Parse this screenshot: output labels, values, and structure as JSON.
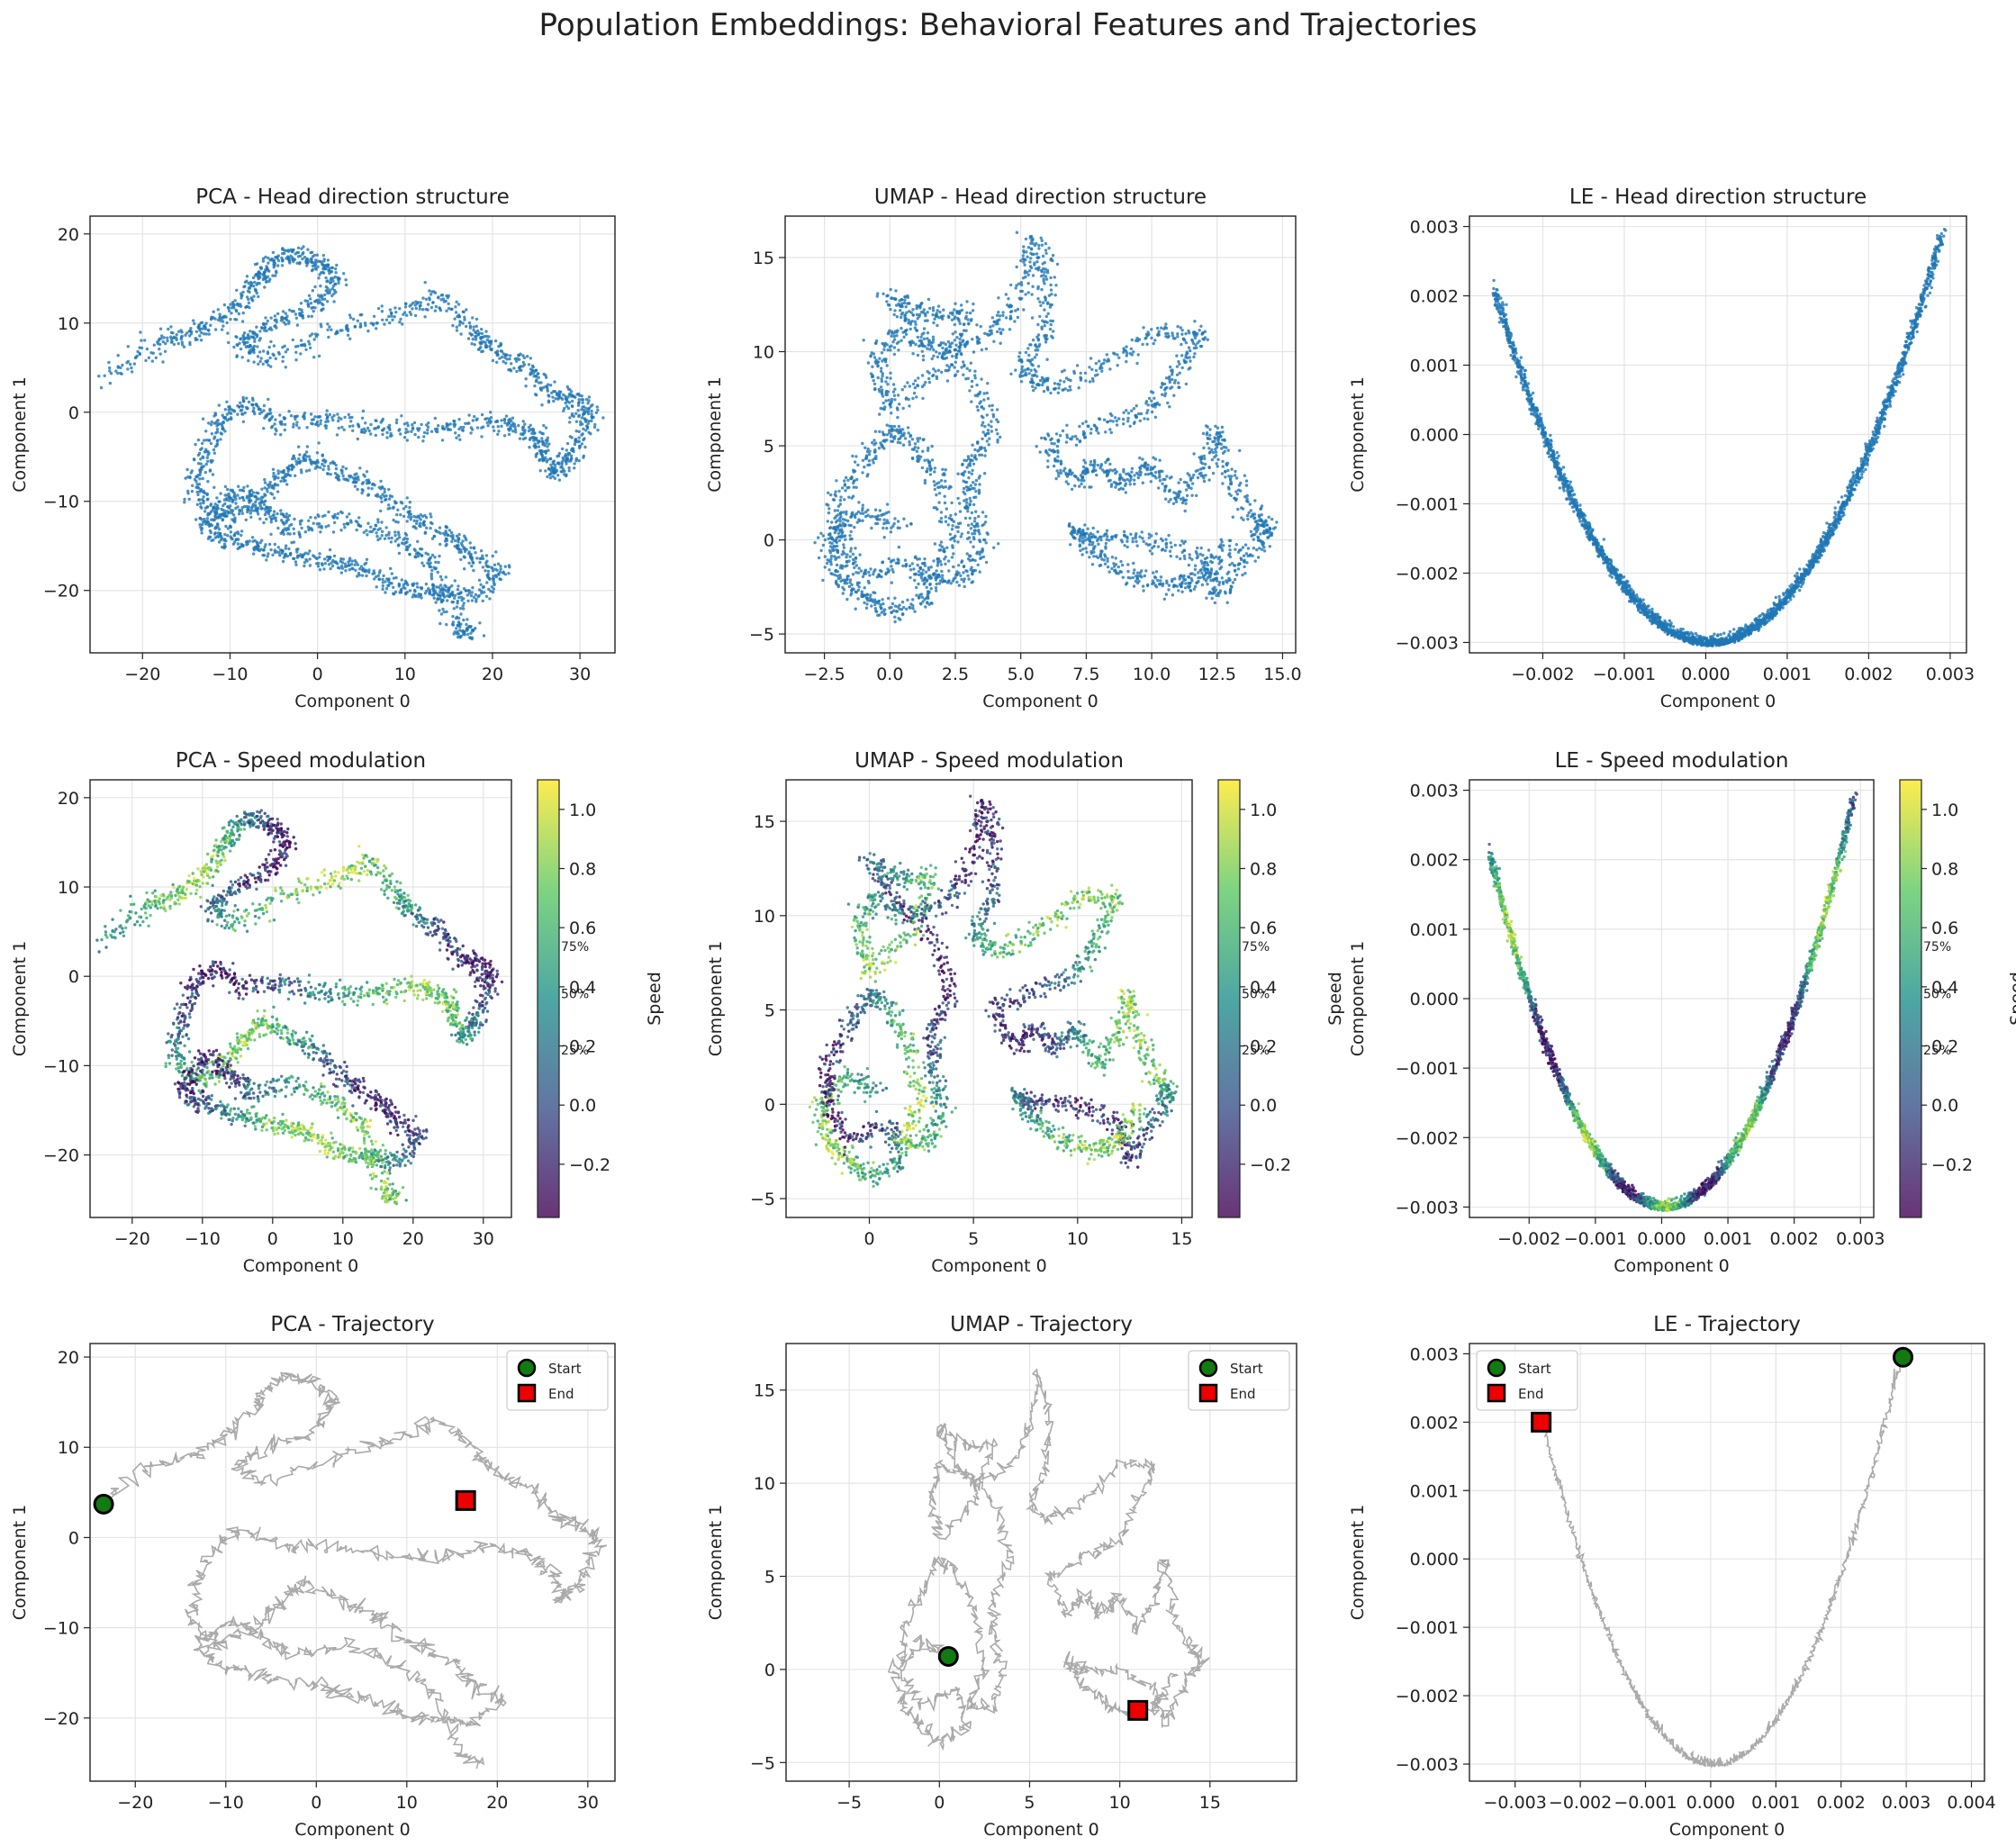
{
  "figure": {
    "title": "Population Embeddings: Behavioral Features and Trajectories"
  },
  "colors": {
    "point_blue": "#1f77b4",
    "trajectory_gray": "#aaaaaa",
    "start_marker": "#117a11",
    "end_marker": "#ee0000",
    "grid": "#e4e4e4",
    "viridis": [
      "#440154",
      "#3b528b",
      "#21918c",
      "#5ec962",
      "#fde725"
    ]
  },
  "chart_data": [
    {
      "id": "pca_head",
      "type": "scatter",
      "title": "PCA - Head direction structure",
      "xlabel": "Component 0",
      "ylabel": "Component 1",
      "xlim": [
        -26,
        34
      ],
      "ylim": [
        -27,
        22
      ],
      "xticks": [
        -20,
        -10,
        0,
        10,
        20,
        30
      ],
      "yticks": [
        -20,
        -10,
        0,
        10,
        20
      ],
      "tick_labels_x": [
        "−20",
        "−10",
        "0",
        "10",
        "20",
        "30"
      ],
      "tick_labels_y": [
        "−20",
        "−10",
        "0",
        "10",
        "20"
      ],
      "grid": true,
      "path": [
        [
          -24,
          4
        ],
        [
          -18,
          8
        ],
        [
          -14,
          9
        ],
        [
          -10,
          11
        ],
        [
          -7,
          14
        ],
        [
          -6,
          16
        ],
        [
          -3,
          18
        ],
        [
          0,
          17
        ],
        [
          2,
          15
        ],
        [
          0,
          12
        ],
        [
          -5,
          10
        ],
        [
          -9,
          8
        ],
        [
          -6,
          6
        ],
        [
          2,
          9
        ],
        [
          9,
          11
        ],
        [
          14,
          13
        ],
        [
          18,
          9
        ],
        [
          20,
          7
        ],
        [
          24,
          5
        ],
        [
          27,
          2
        ],
        [
          30,
          1
        ],
        [
          31,
          -1
        ],
        [
          29,
          -5
        ],
        [
          27,
          -7
        ],
        [
          26,
          -4
        ],
        [
          24,
          -2
        ],
        [
          20,
          -1
        ],
        [
          14,
          -2
        ],
        [
          8,
          -2
        ],
        [
          2,
          -1
        ],
        [
          -4,
          -1
        ],
        [
          -8,
          1
        ],
        [
          -11,
          -1
        ],
        [
          -13,
          -5
        ],
        [
          -14,
          -9
        ],
        [
          -11,
          -12
        ],
        [
          -7,
          -10
        ],
        [
          -4,
          -7
        ],
        [
          -1,
          -5
        ],
        [
          3,
          -7
        ],
        [
          7,
          -9
        ],
        [
          11,
          -12
        ],
        [
          15,
          -14
        ],
        [
          17,
          -16
        ],
        [
          21,
          -18
        ],
        [
          17,
          -21
        ],
        [
          14,
          -20
        ],
        [
          10,
          -20
        ],
        [
          6,
          -18
        ],
        [
          2,
          -17
        ],
        [
          -3,
          -16
        ],
        [
          -7,
          -15
        ],
        [
          -11,
          -14
        ],
        [
          -13,
          -12
        ],
        [
          -9,
          -9
        ],
        [
          -6,
          -11
        ],
        [
          -3,
          -13
        ],
        [
          3,
          -12
        ],
        [
          9,
          -14
        ],
        [
          13,
          -17
        ],
        [
          16,
          -24
        ],
        [
          18,
          -25
        ]
      ],
      "colored": false
    },
    {
      "id": "umap_head",
      "type": "scatter",
      "title": "UMAP - Head direction structure",
      "xlabel": "Component 0",
      "ylabel": "Component 1",
      "xlim": [
        -4,
        15.5
      ],
      "ylim": [
        -6,
        17.2
      ],
      "xticks": [
        -2.5,
        0.0,
        2.5,
        5.0,
        7.5,
        10.0,
        12.5,
        15.0
      ],
      "yticks": [
        -5,
        0,
        5,
        10,
        15
      ],
      "tick_labels_x": [
        "−2.5",
        "0.0",
        "2.5",
        "5.0",
        "7.5",
        "10.0",
        "12.5",
        "15.0"
      ],
      "tick_labels_y": [
        "−5",
        "0",
        "5",
        "10",
        "15"
      ],
      "grid": true,
      "path": [
        [
          0.5,
          0.8
        ],
        [
          -1,
          1.5
        ],
        [
          -2.5,
          0
        ],
        [
          -2,
          -2
        ],
        [
          -1,
          -3
        ],
        [
          0,
          -4
        ],
        [
          1.5,
          -3
        ],
        [
          1,
          -1
        ],
        [
          -1,
          -2
        ],
        [
          -2,
          0
        ],
        [
          -2,
          2
        ],
        [
          -1,
          4
        ],
        [
          0,
          6
        ],
        [
          1,
          5
        ],
        [
          2,
          3
        ],
        [
          2.5,
          0
        ],
        [
          1.5,
          -2
        ],
        [
          3,
          -2
        ],
        [
          3.5,
          0
        ],
        [
          3,
          2
        ],
        [
          3,
          4
        ],
        [
          4,
          6
        ],
        [
          3,
          9
        ],
        [
          1,
          11
        ],
        [
          0,
          13
        ],
        [
          1.5,
          12
        ],
        [
          3,
          12
        ],
        [
          2,
          9
        ],
        [
          0,
          7
        ],
        [
          -0.5,
          9
        ],
        [
          0,
          11
        ],
        [
          2,
          10
        ],
        [
          4,
          11
        ],
        [
          5,
          13
        ],
        [
          5.5,
          16
        ],
        [
          6,
          14
        ],
        [
          6,
          11
        ],
        [
          5,
          9
        ],
        [
          6,
          8
        ],
        [
          8,
          9
        ],
        [
          10,
          11
        ],
        [
          12,
          11
        ],
        [
          11,
          9
        ],
        [
          10,
          7
        ],
        [
          8,
          6
        ],
        [
          6,
          5
        ],
        [
          7,
          3
        ],
        [
          8,
          4
        ],
        [
          9,
          3
        ],
        [
          10,
          4
        ],
        [
          11,
          2
        ],
        [
          12,
          4
        ],
        [
          12.5,
          6
        ],
        [
          13,
          3
        ],
        [
          14,
          1
        ],
        [
          14.5,
          0.5
        ],
        [
          13.5,
          -1
        ],
        [
          12.5,
          -3
        ],
        [
          12,
          -1
        ],
        [
          10,
          0
        ],
        [
          8,
          0
        ],
        [
          7,
          0.5
        ],
        [
          8,
          -1
        ],
        [
          9.5,
          -2
        ],
        [
          11,
          -2.5
        ],
        [
          12,
          -2
        ],
        [
          13,
          0
        ]
      ],
      "colored": false
    },
    {
      "id": "le_head",
      "type": "scatter",
      "title": "LE - Head direction structure",
      "xlabel": "Component 0",
      "ylabel": "Component 1",
      "xlim": [
        -0.0029,
        0.0032
      ],
      "ylim": [
        -0.00315,
        0.00315
      ],
      "xticks": [
        -0.002,
        -0.001,
        0.0,
        0.001,
        0.002,
        0.003
      ],
      "yticks": [
        -0.003,
        -0.002,
        -0.001,
        0.0,
        0.001,
        0.002,
        0.003
      ],
      "tick_labels_x": [
        "−0.002",
        "−0.001",
        "0.000",
        "0.001",
        "0.002",
        "0.003"
      ],
      "tick_labels_y": [
        "−0.003",
        "−0.002",
        "−0.001",
        "0.000",
        "0.001",
        "0.002",
        "0.003"
      ],
      "grid": true,
      "parabola": {
        "x_from": -0.0026,
        "x_to": 0.0029,
        "a": 726,
        "x0": 5e-05,
        "y0": -0.00305
      },
      "colored": false
    },
    {
      "id": "pca_speed",
      "type": "scatter",
      "title": "PCA - Speed modulation",
      "xlabel": "Component 0",
      "ylabel": "Component 1",
      "xlim": [
        -26,
        34
      ],
      "ylim": [
        -27,
        22
      ],
      "xticks": [
        -20,
        -10,
        0,
        10,
        20,
        30
      ],
      "yticks": [
        -20,
        -10,
        0,
        10,
        20
      ],
      "tick_labels_x": [
        "−20",
        "−10",
        "0",
        "10",
        "20",
        "30"
      ],
      "tick_labels_y": [
        "−20",
        "−10",
        "0",
        "10",
        "20"
      ],
      "grid": true,
      "source": "pca_head",
      "colored": true,
      "colorbar": {
        "label": "Speed",
        "range": [
          -0.38,
          1.1
        ],
        "ticks": [
          -0.2,
          0.0,
          0.2,
          0.4,
          0.6,
          0.8,
          1.0
        ],
        "tick_labels": [
          "−0.2",
          "0.0",
          "0.2",
          "0.4",
          "0.6",
          "0.8",
          "1.0"
        ],
        "percentile_labels": [
          {
            "text": "75%",
            "value": 0.54
          },
          {
            "text": "50%",
            "value": 0.38
          },
          {
            "text": "25%",
            "value": 0.19
          }
        ]
      }
    },
    {
      "id": "umap_speed",
      "type": "scatter",
      "title": "UMAP - Speed modulation",
      "xlabel": "Component 0",
      "ylabel": "Component 1",
      "xlim": [
        -4,
        15.5
      ],
      "ylim": [
        -6,
        17.2
      ],
      "xticks": [
        0,
        5,
        10,
        15
      ],
      "yticks": [
        -5,
        0,
        5,
        10,
        15
      ],
      "tick_labels_x": [
        "0",
        "5",
        "10",
        "15"
      ],
      "tick_labels_y": [
        "−5",
        "0",
        "5",
        "10",
        "15"
      ],
      "grid": true,
      "source": "umap_head",
      "colored": true,
      "colorbar": {
        "label": "Speed",
        "range": [
          -0.38,
          1.1
        ],
        "ticks": [
          -0.2,
          0.0,
          0.2,
          0.4,
          0.6,
          0.8,
          1.0
        ],
        "tick_labels": [
          "−0.2",
          "0.0",
          "0.2",
          "0.4",
          "0.6",
          "0.8",
          "1.0"
        ],
        "percentile_labels": [
          {
            "text": "75%",
            "value": 0.54
          },
          {
            "text": "50%",
            "value": 0.38
          },
          {
            "text": "25%",
            "value": 0.19
          }
        ]
      }
    },
    {
      "id": "le_speed",
      "type": "scatter",
      "title": "LE - Speed modulation",
      "xlabel": "Component 0",
      "ylabel": "Component 1",
      "xlim": [
        -0.0029,
        0.0032
      ],
      "ylim": [
        -0.00315,
        0.00315
      ],
      "xticks": [
        -0.002,
        -0.001,
        0.0,
        0.001,
        0.002,
        0.003
      ],
      "yticks": [
        -0.003,
        -0.002,
        -0.001,
        0.0,
        0.001,
        0.002,
        0.003
      ],
      "tick_labels_x": [
        "−0.002",
        "−0.001",
        "0.000",
        "0.001",
        "0.002",
        "0.003"
      ],
      "tick_labels_y": [
        "−0.003",
        "−0.002",
        "−0.001",
        "0.000",
        "0.001",
        "0.002",
        "0.003"
      ],
      "grid": true,
      "source": "le_head",
      "colored": true,
      "colorbar": {
        "label": "Speed",
        "range": [
          -0.38,
          1.1
        ],
        "ticks": [
          -0.2,
          0.0,
          0.2,
          0.4,
          0.6,
          0.8,
          1.0
        ],
        "tick_labels": [
          "−0.2",
          "0.0",
          "0.2",
          "0.4",
          "0.6",
          "0.8",
          "1.0"
        ],
        "percentile_labels": [
          {
            "text": "75%",
            "value": 0.54
          },
          {
            "text": "50%",
            "value": 0.38
          },
          {
            "text": "25%",
            "value": 0.19
          }
        ]
      }
    },
    {
      "id": "pca_traj",
      "type": "line",
      "title": "PCA - Trajectory",
      "xlabel": "Component 0",
      "ylabel": "Component 1",
      "xlim": [
        -25,
        33
      ],
      "ylim": [
        -27,
        21.5
      ],
      "xticks": [
        -20,
        -10,
        0,
        10,
        20,
        30
      ],
      "yticks": [
        -20,
        -10,
        0,
        10,
        20
      ],
      "tick_labels_x": [
        "−20",
        "−10",
        "0",
        "10",
        "20",
        "30"
      ],
      "tick_labels_y": [
        "−20",
        "−10",
        "0",
        "10",
        "20"
      ],
      "grid": true,
      "source": "pca_head",
      "start": [
        -23.5,
        3.7
      ],
      "end": [
        16.5,
        4.1
      ],
      "legend": [
        "Start",
        "End"
      ],
      "legend_loc": "upper right"
    },
    {
      "id": "umap_traj",
      "type": "line",
      "title": "UMAP - Trajectory",
      "xlabel": "Component 0",
      "ylabel": "Component 1",
      "xlim": [
        -8.5,
        19.8
      ],
      "ylim": [
        -6,
        17.5
      ],
      "xticks": [
        -5,
        0,
        5,
        10,
        15
      ],
      "yticks": [
        -5,
        0,
        5,
        10,
        15
      ],
      "tick_labels_x": [
        "−5",
        "0",
        "5",
        "10",
        "15"
      ],
      "tick_labels_y": [
        "−5",
        "0",
        "5",
        "10",
        "15"
      ],
      "grid": true,
      "source": "umap_head",
      "start": [
        0.5,
        0.7
      ],
      "end": [
        11.0,
        -2.2
      ],
      "legend": [
        "Start",
        "End"
      ],
      "legend_loc": "upper right"
    },
    {
      "id": "le_traj",
      "type": "line",
      "title": "LE - Trajectory",
      "xlabel": "Component 0",
      "ylabel": "Component 1",
      "xlim": [
        -0.0037,
        0.0042
      ],
      "ylim": [
        -0.00325,
        0.00315
      ],
      "xticks": [
        -0.003,
        -0.002,
        -0.001,
        0.0,
        0.001,
        0.002,
        0.003,
        0.004
      ],
      "yticks": [
        -0.003,
        -0.002,
        -0.001,
        0.0,
        0.001,
        0.002,
        0.003
      ],
      "tick_labels_x": [
        "−0.003",
        "−0.002",
        "−0.001",
        "0.000",
        "0.001",
        "0.002",
        "0.003",
        "0.004"
      ],
      "tick_labels_y": [
        "−0.003",
        "−0.002",
        "−0.001",
        "0.000",
        "0.001",
        "0.002",
        "0.003"
      ],
      "grid": true,
      "source": "le_head",
      "start": [
        0.00295,
        0.00295
      ],
      "end": [
        -0.0026,
        0.002
      ],
      "legend": [
        "Start",
        "End"
      ],
      "legend_loc": "upper left"
    }
  ]
}
